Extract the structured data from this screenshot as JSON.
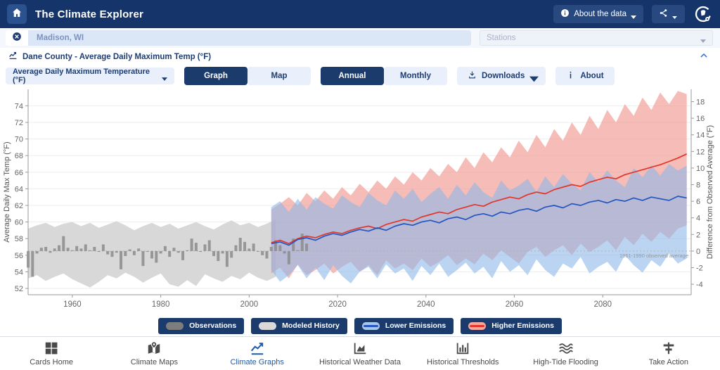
{
  "navbar": {
    "title": "The Climate Explorer",
    "about_data_label": "About the data"
  },
  "search": {
    "location_value": "Madison, WI",
    "stations_placeholder": "Stations"
  },
  "card": {
    "header_title": "Dane County - Average Daily Maximum Temp (°F)",
    "variable_selected": "Average Daily Maximum Temperature (°F)",
    "view_toggle": [
      {
        "label": "Graph",
        "active": true
      },
      {
        "label": "Map",
        "active": false
      }
    ],
    "period_toggle": [
      {
        "label": "Annual",
        "active": true
      },
      {
        "label": "Monthly",
        "active": false
      }
    ],
    "downloads_label": "Downloads",
    "about_label": "About"
  },
  "chart_data": {
    "type": "area",
    "title": "Dane County - Average Daily Maximum Temp (°F)",
    "ylabel_left": "Average Daily Max Temp (°F)",
    "ylabel_right": "Difference from Observed Average (°F)",
    "x_ticks": [
      1960,
      1980,
      2000,
      2020,
      2040,
      2060,
      2080
    ],
    "y_left_ticks": [
      52,
      54,
      56,
      58,
      60,
      62,
      64,
      66,
      68,
      70,
      72,
      74
    ],
    "y_right_ticks": [
      -4,
      -2,
      0,
      2,
      4,
      6,
      8,
      10,
      12,
      14,
      16,
      18
    ],
    "x_range": [
      1950,
      2100
    ],
    "y_range_f": [
      52,
      75.9
    ],
    "grid": true,
    "observed_average_f": 56.5,
    "observed_average_label": "1961-1990 observed average",
    "series": [
      {
        "name": "Modeled History",
        "type": "band",
        "color": "#d8d8d8",
        "opacity": 1,
        "years": [
          1950,
          1952,
          1954,
          1956,
          1958,
          1960,
          1962,
          1964,
          1966,
          1968,
          1970,
          1972,
          1974,
          1976,
          1978,
          1980,
          1982,
          1984,
          1986,
          1988,
          1990,
          1992,
          1994,
          1996,
          1998,
          2000,
          2002,
          2004,
          2006
        ],
        "min": [
          53.2,
          53.6,
          52.9,
          53.4,
          53.8,
          53.1,
          52.6,
          52.1,
          52.8,
          53.6,
          53.2,
          53.9,
          53.4,
          52.7,
          53.3,
          53.8,
          52.5,
          52.2,
          53.0,
          52.3,
          53.7,
          53.2,
          52.8,
          53.5,
          53.1,
          53.9,
          53.3,
          52.9,
          53.4
        ],
        "max": [
          59.2,
          59.6,
          59.9,
          59.4,
          59.8,
          60.0,
          59.5,
          59.9,
          59.3,
          59.7,
          60.1,
          59.6,
          59.0,
          59.5,
          59.9,
          59.4,
          59.8,
          59.2,
          59.6,
          60.0,
          59.5,
          59.1,
          59.7,
          60.2,
          59.6,
          59.9,
          59.4,
          59.8,
          60.3
        ]
      },
      {
        "name": "Higher Emissions",
        "type": "band-line",
        "band_color": "#f0938b",
        "opacity": 0.62,
        "line_color": "#e2362a",
        "years": [
          2005,
          2007,
          2009,
          2011,
          2013,
          2015,
          2017,
          2019,
          2021,
          2023,
          2025,
          2027,
          2029,
          2031,
          2033,
          2035,
          2037,
          2039,
          2041,
          2043,
          2045,
          2047,
          2049,
          2051,
          2053,
          2055,
          2057,
          2059,
          2061,
          2063,
          2065,
          2067,
          2069,
          2071,
          2073,
          2075,
          2077,
          2079,
          2081,
          2083,
          2085,
          2087,
          2089,
          2091,
          2093,
          2095,
          2097,
          2099
        ],
        "min": [
          53.8,
          54.5,
          53.2,
          54.9,
          53.6,
          54.2,
          55.0,
          53.8,
          54.6,
          55.2,
          54.0,
          54.8,
          53.6,
          55.4,
          54.4,
          55.0,
          54.2,
          55.6,
          54.6,
          55.2,
          56.0,
          54.8,
          55.6,
          54.9,
          56.2,
          55.4,
          56.6,
          55.8,
          55.0,
          56.4,
          57.0,
          55.8,
          56.6,
          57.2,
          56.0,
          57.4,
          56.4,
          57.0,
          57.8,
          56.6,
          58.2,
          57.2,
          58.6,
          57.6,
          58.8,
          58.0,
          59.2,
          59.6
        ],
        "max": [
          61.5,
          62.2,
          63.0,
          62.0,
          63.5,
          62.5,
          63.8,
          62.8,
          64.2,
          63.2,
          64.6,
          63.6,
          65.0,
          64.0,
          65.5,
          64.5,
          66.0,
          65.0,
          66.5,
          65.5,
          67.0,
          66.0,
          67.8,
          66.5,
          68.4,
          67.2,
          69.0,
          67.8,
          69.8,
          68.4,
          70.5,
          69.0,
          71.2,
          69.8,
          72.0,
          70.5,
          72.8,
          71.2,
          73.5,
          72.0,
          74.2,
          72.8,
          75.0,
          73.5,
          75.6,
          74.2,
          75.8,
          75.4
        ],
        "median": [
          57.5,
          57.8,
          57.4,
          58.0,
          58.3,
          58.1,
          58.5,
          58.8,
          58.6,
          59.0,
          59.3,
          59.5,
          59.2,
          59.7,
          60.0,
          60.3,
          60.1,
          60.6,
          60.9,
          61.2,
          61.0,
          61.5,
          61.8,
          62.1,
          61.9,
          62.4,
          62.7,
          63.0,
          62.8,
          63.3,
          63.6,
          63.4,
          63.9,
          64.2,
          64.5,
          64.3,
          64.8,
          65.1,
          65.4,
          65.2,
          65.7,
          66.0,
          66.3,
          66.6,
          66.9,
          67.3,
          67.7,
          68.2
        ]
      },
      {
        "name": "Lower Emissions",
        "type": "band-line",
        "band_color": "#8db7ea",
        "opacity": 0.6,
        "line_color": "#2456c0",
        "years": [
          2005,
          2007,
          2009,
          2011,
          2013,
          2015,
          2017,
          2019,
          2021,
          2023,
          2025,
          2027,
          2029,
          2031,
          2033,
          2035,
          2037,
          2039,
          2041,
          2043,
          2045,
          2047,
          2049,
          2051,
          2053,
          2055,
          2057,
          2059,
          2061,
          2063,
          2065,
          2067,
          2069,
          2071,
          2073,
          2075,
          2077,
          2079,
          2081,
          2083,
          2085,
          2087,
          2089,
          2091,
          2093,
          2095,
          2097,
          2099
        ],
        "min": [
          54.2,
          52.8,
          53.6,
          54.8,
          53.2,
          54.5,
          53.0,
          54.8,
          53.5,
          52.6,
          54.0,
          54.6,
          53.2,
          54.9,
          53.8,
          54.4,
          52.9,
          54.7,
          53.6,
          55.0,
          53.4,
          54.2,
          55.1,
          53.8,
          54.6,
          53.2,
          55.3,
          54.0,
          54.8,
          53.6,
          55.5,
          54.2,
          53.4,
          55.0,
          54.4,
          55.8,
          53.8,
          54.6,
          55.2,
          54.0,
          56.0,
          54.8,
          53.9,
          55.4,
          54.6,
          56.2,
          55.0,
          55.6
        ],
        "max": [
          61.8,
          62.5,
          61.2,
          62.8,
          61.5,
          63.0,
          62.2,
          61.6,
          63.2,
          62.4,
          61.8,
          63.5,
          62.6,
          62.0,
          63.8,
          62.8,
          64.0,
          62.4,
          63.4,
          64.2,
          62.8,
          64.5,
          63.2,
          64.8,
          63.6,
          62.9,
          65.0,
          63.8,
          64.4,
          65.2,
          63.6,
          65.5,
          64.2,
          65.8,
          64.6,
          63.8,
          66.0,
          64.8,
          66.2,
          65.0,
          64.2,
          66.5,
          65.4,
          66.8,
          65.6,
          67.0,
          66.2,
          66.8
        ],
        "median": [
          57.4,
          57.6,
          57.2,
          57.9,
          58.1,
          57.8,
          58.3,
          58.6,
          58.4,
          58.8,
          59.1,
          58.9,
          59.3,
          59.0,
          59.5,
          59.8,
          59.6,
          60.0,
          60.2,
          59.9,
          60.4,
          60.6,
          60.3,
          60.8,
          61.0,
          60.7,
          61.2,
          61.0,
          61.4,
          61.6,
          61.3,
          61.8,
          62.0,
          61.7,
          62.2,
          62.0,
          62.4,
          62.6,
          62.3,
          62.7,
          62.5,
          62.9,
          62.6,
          63.0,
          62.8,
          62.6,
          63.1,
          62.9
        ]
      },
      {
        "name": "Observations",
        "type": "bars",
        "color": "#8c8c8c",
        "opacity": 0.85,
        "baseline": 56.5,
        "years": [
          1950,
          1951,
          1952,
          1953,
          1954,
          1955,
          1956,
          1957,
          1958,
          1959,
          1960,
          1961,
          1962,
          1963,
          1964,
          1965,
          1966,
          1967,
          1968,
          1969,
          1970,
          1971,
          1972,
          1973,
          1974,
          1975,
          1976,
          1977,
          1978,
          1979,
          1980,
          1981,
          1982,
          1983,
          1984,
          1985,
          1986,
          1987,
          1988,
          1989,
          1990,
          1991,
          1992,
          1993,
          1994,
          1995,
          1996,
          1997,
          1998,
          1999,
          2000,
          2001,
          2002,
          2003,
          2004,
          2005,
          2006,
          2007,
          2008,
          2009,
          2010,
          2011,
          2012,
          2013
        ],
        "values": [
          54.5,
          53.4,
          56.2,
          56.9,
          57.0,
          56.3,
          56.8,
          57.2,
          58.3,
          56.9,
          56.6,
          57.1,
          56.8,
          57.3,
          56.6,
          57.0,
          56.4,
          57.3,
          56.1,
          55.8,
          56.3,
          54.3,
          55.9,
          56.7,
          56.0,
          56.8,
          54.7,
          56.4,
          55.6,
          55.1,
          56.2,
          57.1,
          55.8,
          56.9,
          56.3,
          55.4,
          56.6,
          58.0,
          57.5,
          56.4,
          57.3,
          57.8,
          55.9,
          55.3,
          56.2,
          54.6,
          55.7,
          57.2,
          58.1,
          57.6,
          56.8,
          57.4,
          56.5,
          56.0,
          55.6,
          57.0,
          57.8,
          57.2,
          56.2,
          54.9,
          58.0,
          56.6,
          58.6,
          57.4
        ]
      }
    ]
  },
  "legend": {
    "items": [
      {
        "label": "Observations",
        "swatch_bg": "#7d7d7d",
        "swatch_line": ""
      },
      {
        "label": "Modeled History",
        "swatch_bg": "#d9d9d9",
        "swatch_line": ""
      },
      {
        "label": "Lower Emissions",
        "swatch_bg": "#a9c6ee",
        "swatch_line": "#2456c0"
      },
      {
        "label": "Higher Emissions",
        "swatch_bg": "#f4a79f",
        "swatch_line": "#e2362a"
      }
    ]
  },
  "bottom_nav": {
    "items": [
      {
        "label": "Cards Home",
        "icon": "grid",
        "active": false
      },
      {
        "label": "Climate Maps",
        "icon": "map",
        "active": false
      },
      {
        "label": "Climate Graphs",
        "icon": "linechart",
        "active": true
      },
      {
        "label": "Historical Weather Data",
        "icon": "areachart",
        "active": false
      },
      {
        "label": "Historical Thresholds",
        "icon": "barchart",
        "active": false
      },
      {
        "label": "High-Tide Flooding",
        "icon": "waves",
        "active": false
      },
      {
        "label": "Take Action",
        "icon": "signpost",
        "active": false
      }
    ]
  }
}
